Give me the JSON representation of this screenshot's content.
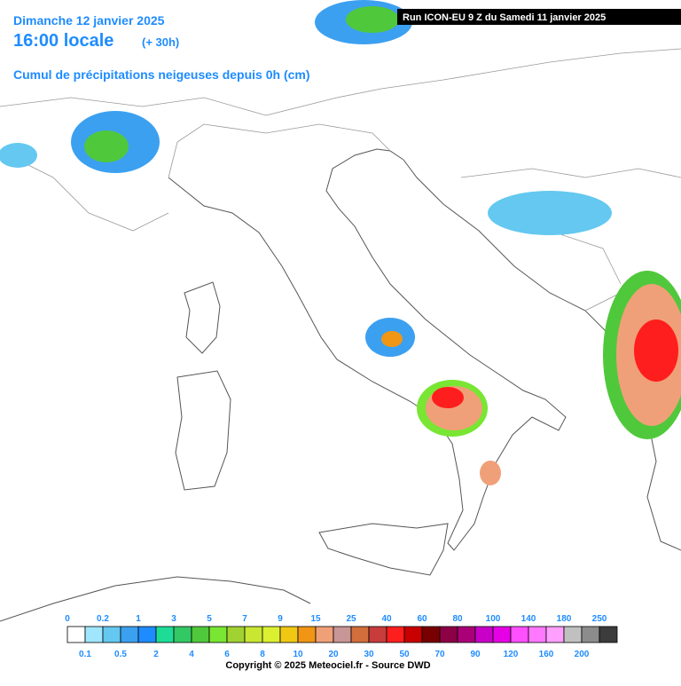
{
  "header": {
    "date": "Dimanche 12 janvier 2025",
    "time": "16:00 locale",
    "lead": "(+ 30h)",
    "product": "Cumul de précipitations neigeuses depuis 0h (cm)",
    "run": "Run ICON-EU 9 Z du Samedi 11 janvier 2025"
  },
  "legend": {
    "items": [
      {
        "value": 0,
        "color": "#ffffff"
      },
      {
        "value": 0.1,
        "color": "#a0e6ff"
      },
      {
        "value": 0.2,
        "color": "#64c8f0"
      },
      {
        "value": 0.5,
        "color": "#3ca0f0"
      },
      {
        "value": 1,
        "color": "#1e8cff"
      },
      {
        "value": 2,
        "color": "#1edc96"
      },
      {
        "value": 3,
        "color": "#32c864"
      },
      {
        "value": 4,
        "color": "#50c83c"
      },
      {
        "value": 5,
        "color": "#78e632"
      },
      {
        "value": 6,
        "color": "#a0d232"
      },
      {
        "value": 7,
        "color": "#c8e632"
      },
      {
        "value": 8,
        "color": "#dcf032"
      },
      {
        "value": 9,
        "color": "#f0c814"
      },
      {
        "value": 10,
        "color": "#f09614"
      },
      {
        "value": 15,
        "color": "#f0a078"
      },
      {
        "value": 20,
        "color": "#c89696"
      },
      {
        "value": 25,
        "color": "#d26e3c"
      },
      {
        "value": 30,
        "color": "#c83c3c"
      },
      {
        "value": 40,
        "color": "#ff1e1e"
      },
      {
        "value": 50,
        "color": "#c80000"
      },
      {
        "value": 60,
        "color": "#780000"
      },
      {
        "value": 70,
        "color": "#8c0046"
      },
      {
        "value": 80,
        "color": "#aa0078"
      },
      {
        "value": 90,
        "color": "#c800c8"
      },
      {
        "value": 100,
        "color": "#e600e6"
      },
      {
        "value": 120,
        "color": "#ff50ff"
      },
      {
        "value": 140,
        "color": "#ff78ff"
      },
      {
        "value": 160,
        "color": "#ffa0ff"
      },
      {
        "value": 180,
        "color": "#c0c0c0"
      },
      {
        "value": 200,
        "color": "#8c8c8c"
      },
      {
        "value": 250,
        "color": "#3c3c3c"
      }
    ]
  },
  "footer": {
    "copyright": "Copyright © 2025 Meteociel.fr - Source DWD"
  }
}
